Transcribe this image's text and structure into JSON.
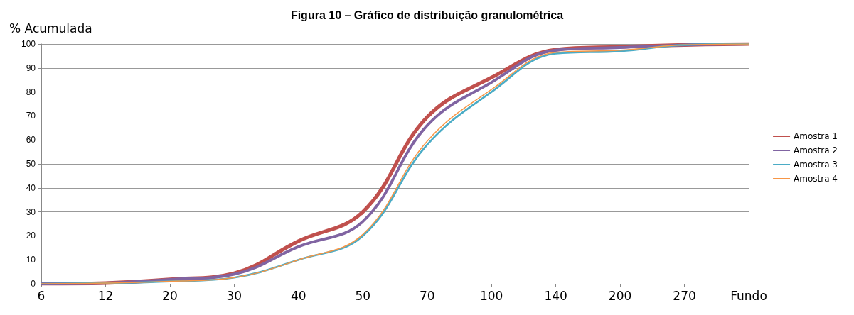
{
  "chart_data": {
    "type": "line",
    "title": "Figura 10 – Gráfico de distribuição granulométrica",
    "ylabel": "% Acumulada",
    "categories": [
      "6",
      "12",
      "20",
      "30",
      "40",
      "50",
      "70",
      "100",
      "140",
      "200",
      "270",
      "Fundo"
    ],
    "series": [
      {
        "name": "Amostra 1",
        "color": "#c0504d",
        "values": [
          0,
          0.3,
          1.8,
          4.4,
          17.8,
          30,
          69.5,
          86,
          97.6,
          98.8,
          99.6,
          100
        ]
      },
      {
        "name": "Amostra 2",
        "color": "#8064a2",
        "values": [
          0,
          0.3,
          1.8,
          4,
          15.5,
          26,
          66,
          84,
          97.4,
          98.5,
          99.6,
          100
        ]
      },
      {
        "name": "Amostra 3",
        "color": "#4bacc6",
        "values": [
          0,
          0.3,
          1,
          2.6,
          10,
          20,
          58,
          80,
          96,
          97,
          99.6,
          100
        ]
      },
      {
        "name": "Amostra 4",
        "color": "#f79646",
        "values": [
          0,
          0.3,
          1,
          2.6,
          10,
          20.6,
          59.5,
          81,
          96.5,
          97.4,
          99.6,
          100
        ]
      }
    ],
    "ylim": [
      0,
      100
    ],
    "yticks": [
      0,
      10,
      20,
      30,
      40,
      50,
      60,
      70,
      80,
      90,
      100
    ],
    "grid": "y",
    "legend": "right",
    "marker": "none",
    "line_style": "solid"
  }
}
